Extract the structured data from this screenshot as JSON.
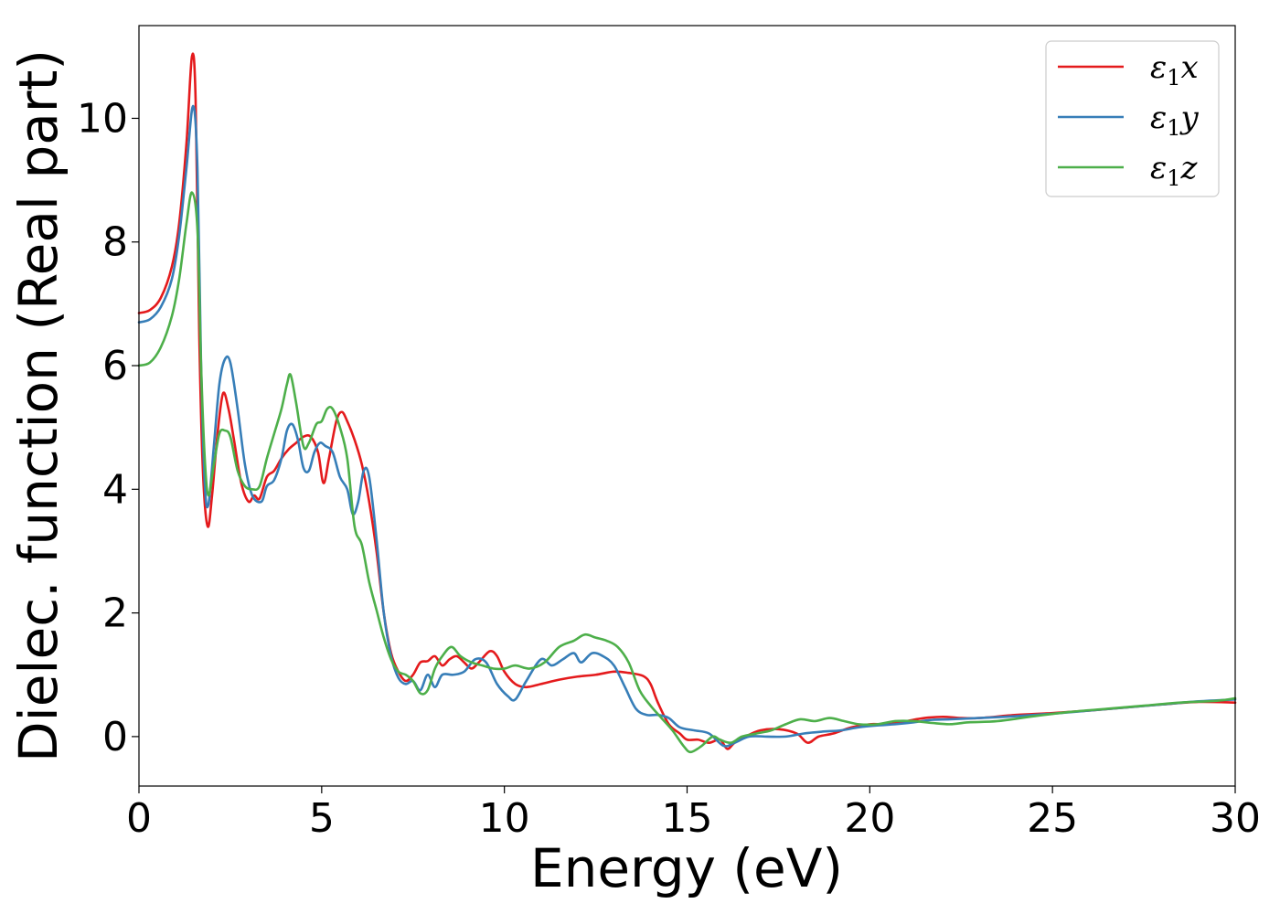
{
  "chart_data": {
    "type": "line",
    "title": "",
    "xlabel": "Energy (eV)",
    "ylabel": "Dielec. function (Real part)",
    "xlim": [
      0,
      30
    ],
    "ylim": [
      -0.8,
      11.5
    ],
    "xticks": [
      0,
      5,
      10,
      15,
      20,
      25,
      30
    ],
    "yticks": [
      0,
      2,
      4,
      6,
      8,
      10
    ],
    "grid": false,
    "legend_position": "top-right",
    "series": [
      {
        "name": "ε₁x",
        "legend_main": "ε",
        "legend_sub": "1",
        "legend_tail": "x",
        "color": "#e41a1c",
        "points": [
          [
            0,
            6.85
          ],
          [
            0.3,
            6.9
          ],
          [
            0.6,
            7.1
          ],
          [
            0.9,
            7.6
          ],
          [
            1.1,
            8.3
          ],
          [
            1.3,
            9.6
          ],
          [
            1.45,
            11.0
          ],
          [
            1.55,
            10.3
          ],
          [
            1.65,
            6.5
          ],
          [
            1.75,
            4.3
          ],
          [
            1.88,
            3.4
          ],
          [
            2.0,
            3.9
          ],
          [
            2.15,
            4.9
          ],
          [
            2.3,
            5.55
          ],
          [
            2.45,
            5.3
          ],
          [
            2.6,
            4.8
          ],
          [
            2.8,
            4.1
          ],
          [
            3.0,
            3.8
          ],
          [
            3.15,
            3.9
          ],
          [
            3.3,
            3.85
          ],
          [
            3.5,
            4.2
          ],
          [
            3.7,
            4.3
          ],
          [
            3.9,
            4.5
          ],
          [
            4.1,
            4.65
          ],
          [
            4.3,
            4.75
          ],
          [
            4.5,
            4.85
          ],
          [
            4.7,
            4.85
          ],
          [
            4.9,
            4.6
          ],
          [
            5.05,
            4.1
          ],
          [
            5.2,
            4.5
          ],
          [
            5.4,
            5.1
          ],
          [
            5.55,
            5.25
          ],
          [
            5.7,
            5.1
          ],
          [
            5.9,
            4.8
          ],
          [
            6.1,
            4.4
          ],
          [
            6.3,
            3.8
          ],
          [
            6.5,
            3.0
          ],
          [
            6.7,
            2.0
          ],
          [
            6.9,
            1.35
          ],
          [
            7.1,
            1.05
          ],
          [
            7.3,
            0.9
          ],
          [
            7.5,
            1.0
          ],
          [
            7.7,
            1.2
          ],
          [
            7.9,
            1.22
          ],
          [
            8.1,
            1.3
          ],
          [
            8.3,
            1.15
          ],
          [
            8.5,
            1.25
          ],
          [
            8.7,
            1.3
          ],
          [
            8.9,
            1.2
          ],
          [
            9.1,
            1.1
          ],
          [
            9.3,
            1.2
          ],
          [
            9.6,
            1.38
          ],
          [
            9.8,
            1.3
          ],
          [
            10.0,
            1.05
          ],
          [
            10.3,
            0.85
          ],
          [
            10.6,
            0.8
          ],
          [
            11.0,
            0.85
          ],
          [
            11.5,
            0.92
          ],
          [
            12.0,
            0.97
          ],
          [
            12.5,
            1.0
          ],
          [
            13.0,
            1.05
          ],
          [
            13.4,
            1.03
          ],
          [
            13.8,
            0.98
          ],
          [
            14.0,
            0.85
          ],
          [
            14.2,
            0.55
          ],
          [
            14.5,
            0.2
          ],
          [
            14.8,
            0.05
          ],
          [
            15.0,
            -0.05
          ],
          [
            15.3,
            -0.05
          ],
          [
            15.6,
            -0.1
          ],
          [
            15.9,
            -0.05
          ],
          [
            16.1,
            -0.2
          ],
          [
            16.3,
            -0.1
          ],
          [
            16.6,
            0.0
          ],
          [
            17.0,
            0.1
          ],
          [
            17.5,
            0.12
          ],
          [
            18.0,
            0.05
          ],
          [
            18.3,
            -0.1
          ],
          [
            18.6,
            0.0
          ],
          [
            19.0,
            0.05
          ],
          [
            19.5,
            0.15
          ],
          [
            20.0,
            0.2
          ],
          [
            20.5,
            0.2
          ],
          [
            21.0,
            0.25
          ],
          [
            21.5,
            0.3
          ],
          [
            22.0,
            0.32
          ],
          [
            22.5,
            0.3
          ],
          [
            23.0,
            0.3
          ],
          [
            24.0,
            0.35
          ],
          [
            25.0,
            0.38
          ],
          [
            26.0,
            0.42
          ],
          [
            27.0,
            0.47
          ],
          [
            28.0,
            0.52
          ],
          [
            29.0,
            0.56
          ],
          [
            30.0,
            0.55
          ]
        ]
      },
      {
        "name": "ε₁y",
        "legend_main": "ε",
        "legend_sub": "1",
        "legend_tail": "y",
        "color": "#377eb8",
        "points": [
          [
            0,
            6.7
          ],
          [
            0.3,
            6.75
          ],
          [
            0.6,
            6.95
          ],
          [
            0.9,
            7.4
          ],
          [
            1.1,
            8.1
          ],
          [
            1.3,
            9.2
          ],
          [
            1.48,
            10.2
          ],
          [
            1.6,
            9.2
          ],
          [
            1.7,
            6.0
          ],
          [
            1.8,
            4.1
          ],
          [
            1.9,
            3.75
          ],
          [
            2.05,
            4.7
          ],
          [
            2.2,
            5.7
          ],
          [
            2.35,
            6.1
          ],
          [
            2.5,
            6.05
          ],
          [
            2.7,
            5.3
          ],
          [
            2.9,
            4.4
          ],
          [
            3.1,
            3.9
          ],
          [
            3.35,
            3.8
          ],
          [
            3.5,
            4.05
          ],
          [
            3.7,
            4.15
          ],
          [
            3.9,
            4.5
          ],
          [
            4.05,
            4.95
          ],
          [
            4.2,
            5.05
          ],
          [
            4.35,
            4.8
          ],
          [
            4.5,
            4.35
          ],
          [
            4.65,
            4.3
          ],
          [
            4.8,
            4.6
          ],
          [
            4.95,
            4.75
          ],
          [
            5.1,
            4.7
          ],
          [
            5.3,
            4.6
          ],
          [
            5.5,
            4.2
          ],
          [
            5.7,
            4.0
          ],
          [
            5.85,
            3.6
          ],
          [
            6.0,
            3.8
          ],
          [
            6.15,
            4.3
          ],
          [
            6.3,
            4.2
          ],
          [
            6.5,
            3.2
          ],
          [
            6.7,
            2.0
          ],
          [
            6.9,
            1.3
          ],
          [
            7.1,
            0.95
          ],
          [
            7.3,
            0.85
          ],
          [
            7.5,
            0.9
          ],
          [
            7.7,
            0.75
          ],
          [
            7.9,
            1.0
          ],
          [
            8.1,
            0.8
          ],
          [
            8.3,
            1.0
          ],
          [
            8.6,
            1.0
          ],
          [
            8.9,
            1.05
          ],
          [
            9.2,
            1.25
          ],
          [
            9.5,
            1.2
          ],
          [
            9.8,
            0.85
          ],
          [
            10.1,
            0.65
          ],
          [
            10.3,
            0.6
          ],
          [
            10.6,
            0.9
          ],
          [
            11.0,
            1.25
          ],
          [
            11.3,
            1.15
          ],
          [
            11.6,
            1.25
          ],
          [
            11.9,
            1.35
          ],
          [
            12.1,
            1.2
          ],
          [
            12.4,
            1.35
          ],
          [
            12.7,
            1.3
          ],
          [
            13.0,
            1.15
          ],
          [
            13.3,
            0.8
          ],
          [
            13.6,
            0.45
          ],
          [
            13.9,
            0.35
          ],
          [
            14.2,
            0.35
          ],
          [
            14.5,
            0.3
          ],
          [
            14.8,
            0.15
          ],
          [
            15.2,
            0.1
          ],
          [
            15.6,
            0.05
          ],
          [
            16.0,
            -0.15
          ],
          [
            16.3,
            -0.1
          ],
          [
            16.7,
            0.0
          ],
          [
            17.2,
            0.0
          ],
          [
            17.7,
            0.0
          ],
          [
            18.2,
            0.05
          ],
          [
            18.7,
            0.08
          ],
          [
            19.2,
            0.1
          ],
          [
            19.7,
            0.15
          ],
          [
            20.2,
            0.18
          ],
          [
            20.7,
            0.2
          ],
          [
            21.2,
            0.23
          ],
          [
            21.7,
            0.27
          ],
          [
            22.2,
            0.28
          ],
          [
            23.0,
            0.3
          ],
          [
            24.0,
            0.33
          ],
          [
            25.0,
            0.37
          ],
          [
            26.0,
            0.42
          ],
          [
            27.0,
            0.47
          ],
          [
            28.0,
            0.52
          ],
          [
            29.0,
            0.57
          ],
          [
            30.0,
            0.6
          ]
        ]
      },
      {
        "name": "ε₁z",
        "legend_main": "ε",
        "legend_sub": "1",
        "legend_tail": "z",
        "color": "#4daf4a",
        "points": [
          [
            0,
            6.0
          ],
          [
            0.3,
            6.05
          ],
          [
            0.6,
            6.3
          ],
          [
            0.9,
            6.8
          ],
          [
            1.1,
            7.4
          ],
          [
            1.3,
            8.3
          ],
          [
            1.45,
            8.8
          ],
          [
            1.6,
            8.2
          ],
          [
            1.7,
            6.0
          ],
          [
            1.8,
            4.5
          ],
          [
            1.9,
            3.9
          ],
          [
            2.05,
            4.4
          ],
          [
            2.2,
            4.9
          ],
          [
            2.35,
            4.95
          ],
          [
            2.5,
            4.85
          ],
          [
            2.7,
            4.3
          ],
          [
            2.9,
            4.05
          ],
          [
            3.1,
            4.0
          ],
          [
            3.3,
            4.05
          ],
          [
            3.5,
            4.5
          ],
          [
            3.7,
            4.9
          ],
          [
            3.9,
            5.3
          ],
          [
            4.05,
            5.7
          ],
          [
            4.15,
            5.85
          ],
          [
            4.3,
            5.4
          ],
          [
            4.5,
            4.7
          ],
          [
            4.65,
            4.75
          ],
          [
            4.85,
            5.05
          ],
          [
            5.0,
            5.1
          ],
          [
            5.15,
            5.3
          ],
          [
            5.3,
            5.3
          ],
          [
            5.5,
            5.0
          ],
          [
            5.7,
            4.5
          ],
          [
            5.9,
            3.4
          ],
          [
            6.1,
            3.1
          ],
          [
            6.3,
            2.5
          ],
          [
            6.5,
            2.05
          ],
          [
            6.7,
            1.6
          ],
          [
            6.9,
            1.25
          ],
          [
            7.1,
            1.05
          ],
          [
            7.3,
            1.0
          ],
          [
            7.5,
            0.9
          ],
          [
            7.7,
            0.7
          ],
          [
            7.9,
            0.75
          ],
          [
            8.1,
            1.1
          ],
          [
            8.3,
            1.3
          ],
          [
            8.55,
            1.45
          ],
          [
            8.8,
            1.3
          ],
          [
            9.1,
            1.2
          ],
          [
            9.4,
            1.15
          ],
          [
            9.7,
            1.1
          ],
          [
            10.0,
            1.1
          ],
          [
            10.3,
            1.15
          ],
          [
            10.7,
            1.1
          ],
          [
            11.1,
            1.2
          ],
          [
            11.5,
            1.45
          ],
          [
            11.9,
            1.55
          ],
          [
            12.2,
            1.65
          ],
          [
            12.5,
            1.6
          ],
          [
            12.8,
            1.55
          ],
          [
            13.1,
            1.45
          ],
          [
            13.4,
            1.2
          ],
          [
            13.7,
            0.75
          ],
          [
            14.0,
            0.5
          ],
          [
            14.3,
            0.3
          ],
          [
            14.6,
            0.1
          ],
          [
            14.9,
            -0.15
          ],
          [
            15.1,
            -0.25
          ],
          [
            15.4,
            -0.15
          ],
          [
            15.7,
            0.0
          ],
          [
            15.9,
            -0.05
          ],
          [
            16.2,
            -0.1
          ],
          [
            16.5,
            0.0
          ],
          [
            16.9,
            0.05
          ],
          [
            17.3,
            0.1
          ],
          [
            17.7,
            0.2
          ],
          [
            18.1,
            0.28
          ],
          [
            18.5,
            0.25
          ],
          [
            18.9,
            0.3
          ],
          [
            19.3,
            0.25
          ],
          [
            19.7,
            0.2
          ],
          [
            20.2,
            0.2
          ],
          [
            20.7,
            0.25
          ],
          [
            21.2,
            0.25
          ],
          [
            21.7,
            0.22
          ],
          [
            22.2,
            0.2
          ],
          [
            22.7,
            0.23
          ],
          [
            23.5,
            0.25
          ],
          [
            24.5,
            0.33
          ],
          [
            25.5,
            0.4
          ],
          [
            26.5,
            0.45
          ],
          [
            27.5,
            0.5
          ],
          [
            28.5,
            0.55
          ],
          [
            29.5,
            0.58
          ],
          [
            30.0,
            0.62
          ]
        ]
      }
    ]
  }
}
